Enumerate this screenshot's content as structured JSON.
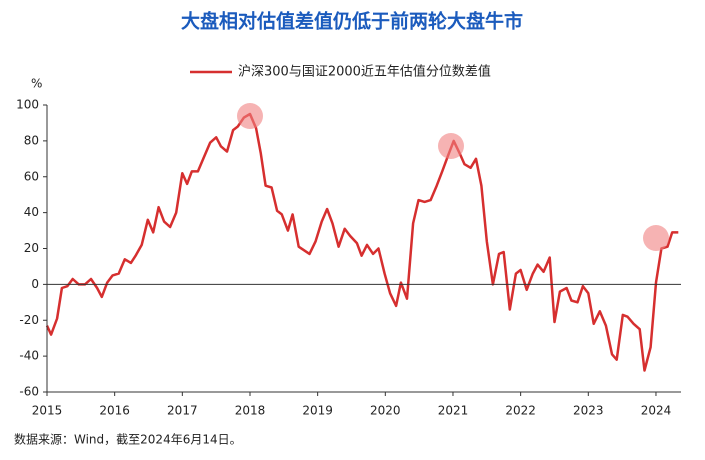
{
  "chart_data": {
    "type": "line",
    "title": "大盘相对估值差值仍低于前两轮大盘牛市",
    "y_unit": "%",
    "source": "数据来源：Wind，截至2024年6月14日。",
    "x": [
      2015.0,
      2015.06,
      2015.15,
      2015.22,
      2015.3,
      2015.38,
      2015.47,
      2015.56,
      2015.65,
      2015.74,
      2015.81,
      2015.89,
      2015.97,
      2016.06,
      2016.15,
      2016.24,
      2016.31,
      2016.4,
      2016.49,
      2016.57,
      2016.65,
      2016.73,
      2016.82,
      2016.91,
      2017.0,
      2017.07,
      2017.14,
      2017.23,
      2017.32,
      2017.41,
      2017.5,
      2017.57,
      2017.66,
      2017.75,
      2017.82,
      2017.91,
      2018.0,
      2018.09,
      2018.16,
      2018.23,
      2018.32,
      2018.4,
      2018.47,
      2018.56,
      2018.63,
      2018.72,
      2018.8,
      2018.88,
      2018.97,
      2019.06,
      2019.14,
      2019.22,
      2019.31,
      2019.4,
      2019.48,
      2019.58,
      2019.65,
      2019.73,
      2019.82,
      2019.9,
      2019.99,
      2020.07,
      2020.16,
      2020.23,
      2020.32,
      2020.41,
      2020.49,
      2020.58,
      2020.67,
      2020.76,
      2020.84,
      2020.93,
      2021.01,
      2021.1,
      2021.17,
      2021.26,
      2021.34,
      2021.42,
      2021.5,
      2021.59,
      2021.68,
      2021.75,
      2021.84,
      2021.93,
      2022.0,
      2022.09,
      2022.18,
      2022.25,
      2022.34,
      2022.43,
      2022.5,
      2022.58,
      2022.68,
      2022.75,
      2022.84,
      2022.92,
      2023.0,
      2023.08,
      2023.17,
      2023.26,
      2023.35,
      2023.42,
      2023.51,
      2023.58,
      2023.67,
      2023.76,
      2023.83,
      2023.92,
      2024.0,
      2024.08,
      2024.17,
      2024.24,
      2024.33
    ],
    "series": [
      {
        "name": "沪深300与国证2000近五年估值分位数差值",
        "color": "#d62f2f",
        "values": [
          -23,
          -28,
          -19,
          -2,
          -1,
          3,
          0,
          0,
          3,
          -2,
          -7,
          1,
          5,
          6,
          14,
          12,
          16,
          22,
          36,
          29,
          43,
          35,
          32,
          40,
          62,
          56,
          63,
          63,
          71,
          79,
          82,
          77,
          74,
          86,
          88,
          93,
          95,
          87,
          73,
          55,
          54,
          41,
          39,
          30,
          39,
          21,
          19,
          17,
          24,
          35,
          42,
          34,
          21,
          31,
          27,
          23,
          16,
          22,
          17,
          20,
          6,
          -5,
          -12,
          1,
          -8,
          34,
          47,
          46,
          47,
          55,
          63,
          72,
          80,
          73,
          67,
          65,
          70,
          55,
          24,
          0,
          17,
          18,
          -14,
          6,
          8,
          -3,
          6,
          11,
          7,
          15,
          -21,
          -4,
          -2,
          -9,
          -10,
          -1,
          -5,
          -22,
          -15,
          -23,
          -39,
          -42,
          -17,
          -18,
          -22,
          -25,
          -48,
          -35,
          1,
          20,
          21,
          29,
          29
        ]
      }
    ],
    "xlim": [
      2015,
      2024.37
    ],
    "xticks": [
      2015,
      2016,
      2017,
      2018,
      2019,
      2020,
      2021,
      2022,
      2023,
      2024
    ],
    "ylim": [
      -60,
      100
    ],
    "yticks": [
      -60,
      -40,
      -20,
      0,
      20,
      40,
      60,
      80,
      100
    ],
    "zero_line": true
  }
}
